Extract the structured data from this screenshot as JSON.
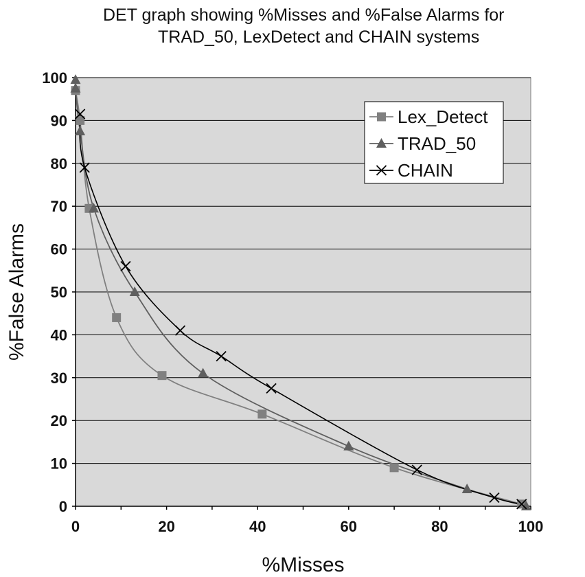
{
  "chart_data": {
    "type": "line",
    "title_line1": "DET graph showing %Misses and %False Alarms for",
    "title_line2": "TRAD_50, LexDetect and CHAIN systems",
    "xlabel": "%Misses",
    "ylabel": "%False Alarms",
    "xlim": [
      0,
      100
    ],
    "ylim": [
      0,
      100
    ],
    "xticks": [
      "0",
      "20",
      "40",
      "60",
      "80",
      "100"
    ],
    "yticks": [
      "0",
      "10",
      "20",
      "30",
      "40",
      "50",
      "60",
      "70",
      "80",
      "90",
      "100"
    ],
    "grid": "horizontal",
    "plot_background": "#d9d9d9",
    "legend_position": "top-right",
    "series": [
      {
        "name": "Lex_Detect",
        "marker": "square",
        "color": "#808080",
        "points": [
          [
            0,
            97
          ],
          [
            1,
            90
          ],
          [
            3,
            69.5
          ],
          [
            9,
            44
          ],
          [
            19,
            30.5
          ],
          [
            41,
            21.5
          ],
          [
            70,
            9
          ],
          [
            98,
            0.5
          ]
        ]
      },
      {
        "name": "TRAD_50",
        "marker": "triangle",
        "color": "#5f5f5f",
        "points": [
          [
            0,
            99.5
          ],
          [
            0,
            97.5
          ],
          [
            1,
            87.5
          ],
          [
            4,
            69.5
          ],
          [
            13,
            50
          ],
          [
            28,
            31
          ],
          [
            60,
            14
          ],
          [
            86,
            4
          ],
          [
            99,
            0
          ]
        ]
      },
      {
        "name": "CHAIN",
        "marker": "x",
        "color": "#000000",
        "points": [
          [
            1,
            91.5
          ],
          [
            2,
            79
          ],
          [
            11,
            56
          ],
          [
            23,
            41
          ],
          [
            32,
            35
          ],
          [
            43,
            27.5
          ],
          [
            75,
            8.5
          ],
          [
            92,
            2
          ],
          [
            98,
            0.5
          ]
        ]
      }
    ]
  }
}
